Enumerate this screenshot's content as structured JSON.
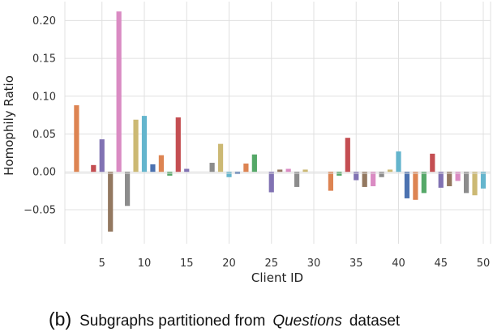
{
  "chart_data": {
    "type": "bar",
    "title": "",
    "xlabel": "Client ID",
    "ylabel": "Homophily Ratio",
    "ylim": [
      -0.095,
      0.225
    ],
    "grid": true,
    "legend": "none",
    "x_ticks": [
      5,
      10,
      15,
      20,
      25,
      30,
      35,
      40,
      45,
      50
    ],
    "y_ticks": [
      {
        "value": 0.2,
        "label": "0.20"
      },
      {
        "value": 0.15,
        "label": "0.15"
      },
      {
        "value": 0.1,
        "label": "0.10"
      },
      {
        "value": 0.05,
        "label": "0.05"
      },
      {
        "value": 0.0,
        "label": "0.00"
      },
      {
        "value": -0.05,
        "label": "−0.05"
      }
    ],
    "categories": [
      1,
      2,
      3,
      4,
      5,
      6,
      7,
      8,
      9,
      10,
      11,
      12,
      13,
      14,
      15,
      16,
      17,
      18,
      19,
      20,
      21,
      22,
      23,
      24,
      25,
      26,
      27,
      28,
      29,
      30,
      31,
      32,
      33,
      34,
      35,
      36,
      37,
      38,
      39,
      40,
      41,
      42,
      43,
      44,
      45,
      46,
      47,
      48,
      49,
      50
    ],
    "values": [
      0.0,
      0.088,
      0.0,
      0.009,
      0.043,
      -0.079,
      0.212,
      -0.045,
      0.069,
      0.074,
      0.01,
      0.022,
      -0.005,
      0.072,
      0.004,
      0.0,
      0.0,
      0.012,
      0.037,
      -0.007,
      -0.003,
      0.011,
      0.023,
      0.0,
      -0.027,
      0.003,
      0.004,
      -0.02,
      0.003,
      0.0,
      0.0,
      -0.025,
      -0.005,
      0.045,
      -0.011,
      -0.02,
      -0.019,
      -0.007,
      0.003,
      0.027,
      -0.035,
      -0.037,
      -0.028,
      0.024,
      -0.021,
      -0.019,
      -0.012,
      -0.028,
      -0.031,
      -0.022
    ],
    "palette": [
      "#4c72b0",
      "#dd8452",
      "#55a868",
      "#c44e52",
      "#8172b3",
      "#937860",
      "#da8bc3",
      "#8c8c8c",
      "#ccb974",
      "#64b5cd"
    ]
  },
  "caption": {
    "label": "(b)",
    "text_before": "Subgraphs partitioned from",
    "text_italic": "Questions",
    "text_after": "dataset"
  }
}
